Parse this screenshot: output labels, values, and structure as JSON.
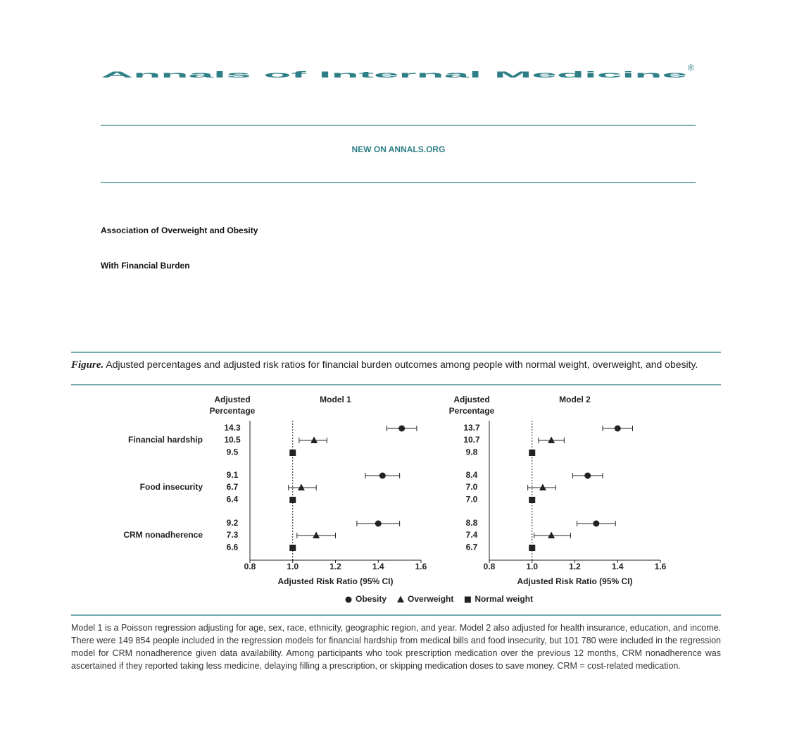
{
  "masthead": {
    "journal": "Annals of Internal Medicine",
    "registered": "®",
    "section": "NEW ON ANNALS.ORG"
  },
  "article": {
    "title_lines": [
      "Association of Overweight and Obesity",
      "With Financial Burden"
    ]
  },
  "figure": {
    "label": "Figure.",
    "caption": "Adjusted percentages and adjusted risk ratios for financial burden outcomes among people with normal weight, overweight, and obesity.",
    "footnote": "Model 1 is a Poisson regression adjusting for age, sex, race, ethnicity, geographic region, and year. Model 2 also adjusted for health insurance, education, and income. There were 149 854 people included in the regression models for financial hardship from medical bills and food insecurity, but 101 780 were included in the regression model for CRM nonadherence given data availability. Among participants who took prescription medication over the previous 12 months, CRM nonadherence was ascertained if they reported taking less medicine, delaying filling a prescription, or skipping medication doses to save money. CRM = cost-related medication."
  },
  "chart_data": [
    {
      "type": "forest",
      "title": "Model 1",
      "percentage_header": [
        "Adjusted",
        "Percentage"
      ],
      "x_label": "Adjusted Risk Ratio (95% CI)",
      "categories": [
        "Financial hardship",
        "Food insecurity",
        "CRM nonadherence"
      ],
      "xlim": [
        0.8,
        1.6
      ],
      "xticks": [
        0.8,
        {
          "value": 1,
          "label": "1.0"
        },
        1.2,
        1.4,
        1.6
      ],
      "reference_line": 1,
      "series": [
        {
          "name": "Obesity",
          "marker": "circle",
          "color": "#222222",
          "values": [
            1.51,
            1.42,
            1.4
          ],
          "ci_low": [
            1.44,
            1.34,
            1.3
          ],
          "ci_high": [
            1.58,
            1.5,
            1.5
          ],
          "percentages": [
            "14.3",
            "9.1",
            "9.2"
          ]
        },
        {
          "name": "Overweight",
          "marker": "triangle",
          "color": "#222222",
          "values": [
            1.1,
            1.04,
            1.11
          ],
          "ci_low": [
            1.03,
            0.98,
            1.02
          ],
          "ci_high": [
            1.16,
            1.11,
            1.2
          ],
          "percentages": [
            "10.5",
            "6.7",
            "7.3"
          ]
        },
        {
          "name": "Normal weight",
          "marker": "square",
          "color": "#222222",
          "values": [
            1,
            1,
            1
          ],
          "ci_low": [
            null,
            null,
            null
          ],
          "ci_high": [
            null,
            null,
            null
          ],
          "percentages": [
            "9.5",
            "6.4",
            "6.6"
          ]
        }
      ]
    },
    {
      "type": "forest",
      "title": "Model 2",
      "percentage_header": [
        "Adjusted",
        "Percentage"
      ],
      "x_label": "Adjusted Risk Ratio (95% CI)",
      "categories": [
        null,
        null,
        null
      ],
      "xlim": [
        0.8,
        1.6
      ],
      "xticks": [
        0.8,
        {
          "value": 1,
          "label": "1.0"
        },
        1.2,
        1.4,
        1.6
      ],
      "reference_line": 1,
      "series": [
        {
          "name": "Obesity",
          "marker": "circle",
          "color": "#222222",
          "values": [
            1.4,
            1.26,
            1.3
          ],
          "ci_low": [
            1.33,
            1.19,
            1.21
          ],
          "ci_high": [
            1.47,
            1.33,
            1.39
          ],
          "percentages": [
            "13.7",
            "8.4",
            "8.8"
          ]
        },
        {
          "name": "Overweight",
          "marker": "triangle",
          "color": "#222222",
          "values": [
            1.09,
            1.05,
            1.09
          ],
          "ci_low": [
            1.03,
            0.98,
            1.01
          ],
          "ci_high": [
            1.15,
            1.11,
            1.18
          ],
          "percentages": [
            "10.7",
            "7.0",
            "7.4"
          ]
        },
        {
          "name": "Normal weight",
          "marker": "square",
          "color": "#222222",
          "values": [
            1,
            1,
            1
          ],
          "ci_low": [
            null,
            null,
            null
          ],
          "ci_high": [
            null,
            null,
            null
          ],
          "percentages": [
            "9.8",
            "7.0",
            "6.7"
          ]
        }
      ]
    }
  ]
}
